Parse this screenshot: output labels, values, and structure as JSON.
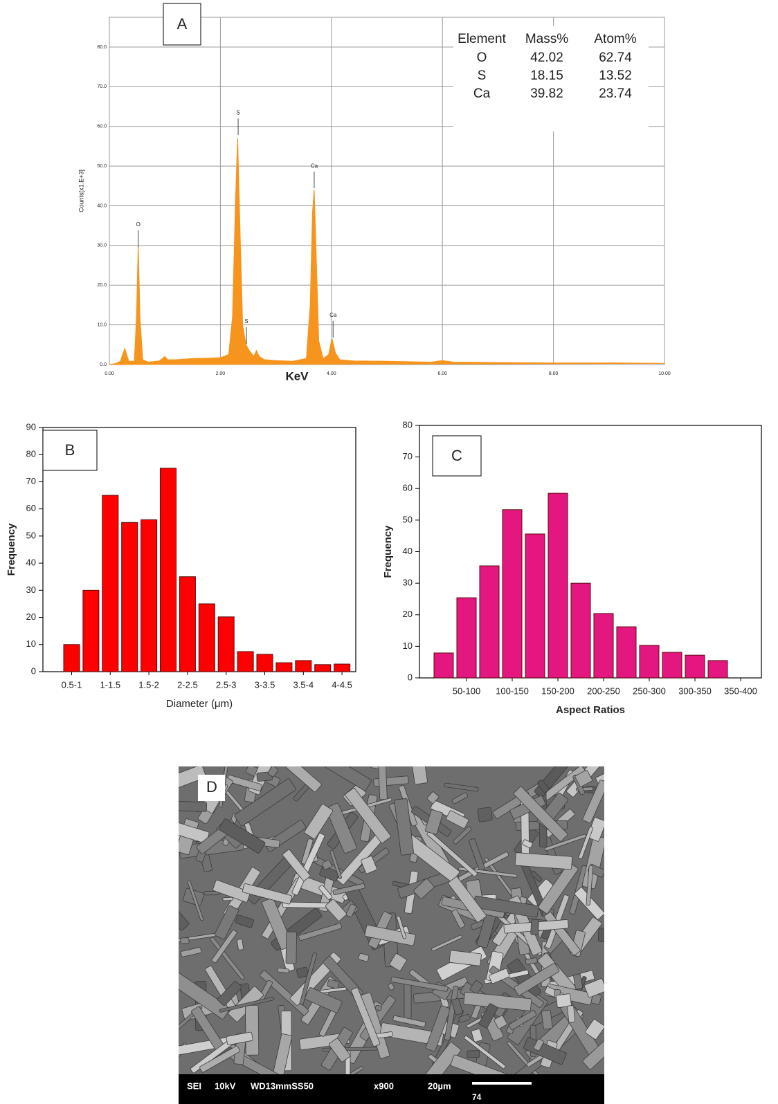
{
  "chart_data": [
    {
      "type": "area",
      "panel_label": "A",
      "x": [
        0,
        0.1,
        0.2,
        0.25,
        0.28,
        0.31,
        0.35,
        0.45,
        0.49,
        0.52,
        0.55,
        0.6,
        0.7,
        0.9,
        1.0,
        1.05,
        1.2,
        1.5,
        1.8,
        2.0,
        2.15,
        2.22,
        2.27,
        2.31,
        2.35,
        2.4,
        2.46,
        2.52,
        2.6,
        2.65,
        2.7,
        2.8,
        3.0,
        3.3,
        3.55,
        3.62,
        3.66,
        3.69,
        3.72,
        3.77,
        3.85,
        3.95,
        4.01,
        4.07,
        4.15,
        4.4,
        5.0,
        5.8,
        6.0,
        6.2,
        7.0,
        8.0,
        9.0,
        10.0
      ],
      "values": [
        0,
        0.2,
        0.8,
        3,
        4,
        2.5,
        0.8,
        0.8,
        12,
        30,
        12,
        1.2,
        0.6,
        0.9,
        2,
        1.2,
        1.2,
        1.5,
        1.6,
        1.7,
        2.5,
        12,
        40,
        57,
        35,
        10,
        5,
        3.5,
        2,
        3.5,
        2,
        1.2,
        1,
        0.8,
        1.5,
        15,
        38,
        44,
        30,
        6,
        1.5,
        2.5,
        6.5,
        3,
        1.2,
        0.9,
        0.8,
        0.6,
        1,
        0.6,
        0.5,
        0.4,
        0.4,
        0.3
      ],
      "color": "#f7941d",
      "xlim": [
        0,
        10
      ],
      "xticks": [
        {
          "value": 0,
          "label": "0.00"
        },
        {
          "value": 2,
          "label": "2.00"
        },
        {
          "value": 4,
          "label": "4.00"
        },
        {
          "value": 6,
          "label": "6.00"
        },
        {
          "value": 8,
          "label": "8.00"
        },
        {
          "value": 10,
          "label": "10.00"
        }
      ],
      "ylim": [
        0,
        87.5
      ],
      "yticks": [
        {
          "value": 0,
          "label": "0.0"
        },
        {
          "value": 10,
          "label": "10.0"
        },
        {
          "value": 20,
          "label": "20.0"
        },
        {
          "value": 30,
          "label": "30.0"
        },
        {
          "value": 40,
          "label": "40.0"
        },
        {
          "value": 50,
          "label": "50.0"
        },
        {
          "value": 60,
          "label": "60.0"
        },
        {
          "value": 70,
          "label": "70.0"
        },
        {
          "value": 80,
          "label": "80.0"
        }
      ],
      "x_label": "KeV",
      "y_label": "Counts[x1.E+3]",
      "grid": true,
      "peak_labels": [
        {
          "label": "O",
          "x": 0.52,
          "y": 35.2
        },
        {
          "label": "S",
          "x": 2.32,
          "y": 63.4
        },
        {
          "label": "S",
          "x": 2.47,
          "y": 10.8
        },
        {
          "label": "Ca",
          "x": 3.69,
          "y": 50
        },
        {
          "label": "Ca",
          "x": 4.03,
          "y": 12.4
        }
      ],
      "table": {
        "header": [
          "Element",
          "Mass%",
          "Atom%"
        ],
        "rows": [
          [
            "O",
            "42.02",
            "62.74"
          ],
          [
            "S",
            "18.15",
            "13.52"
          ],
          [
            "Ca",
            "39.82",
            "23.74"
          ]
        ]
      }
    },
    {
      "type": "bar",
      "panel_label": "B",
      "categories": [
        "0.5-1",
        null,
        "1-1.5",
        null,
        "1.5-2",
        null,
        "2-2.5",
        null,
        "2.5-3",
        null,
        "3-3.5",
        null,
        "3.5-4",
        null,
        "4-4.5"
      ],
      "values": [
        10,
        30,
        65,
        55,
        56,
        75,
        35,
        25,
        20.2,
        7.4,
        6.4,
        3.3,
        4.1,
        2.6,
        2.8
      ],
      "color": "#ff0000",
      "ylim": [
        0,
        90
      ],
      "yticks": [
        0,
        10,
        20,
        30,
        40,
        50,
        60,
        70,
        80,
        90
      ],
      "x_label": "Diameter (μm)",
      "y_label": "Frequency",
      "grid": false
    },
    {
      "type": "bar",
      "panel_label": "C",
      "categories": [
        null,
        "50-100",
        null,
        "100-150",
        null,
        "150-200",
        null,
        "200-250",
        null,
        "250-300",
        null,
        "300-350",
        null,
        "350-400"
      ],
      "values": [
        7.9,
        25.4,
        35.5,
        53.3,
        45.6,
        58.5,
        30,
        20.4,
        16.2,
        10.3,
        8.1,
        7.2,
        5.5,
        null
      ],
      "color": "#e3177f",
      "ylim": [
        0,
        80
      ],
      "yticks": [
        0,
        10,
        20,
        30,
        40,
        50,
        60,
        70,
        80
      ],
      "x_label": "Aspect Ratios",
      "y_label": "Frequency",
      "grid": false
    }
  ],
  "image": {
    "panel_label": "D",
    "info": [
      "SEI",
      "10kV",
      "WD13mmSS50",
      "x900",
      "20µm"
    ],
    "scale_value": "74"
  }
}
